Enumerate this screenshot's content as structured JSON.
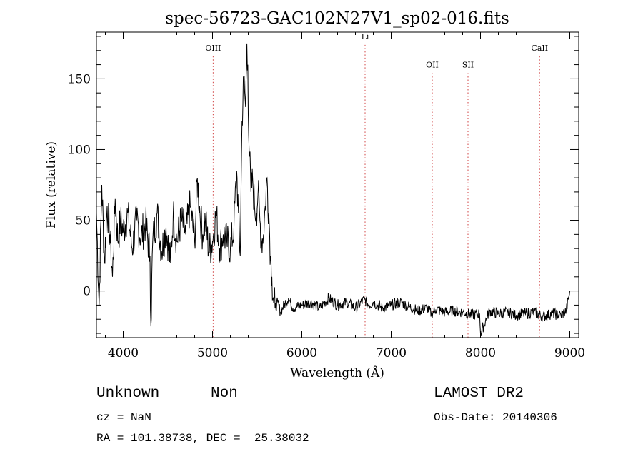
{
  "chart_data": {
    "type": "line",
    "title": "spec-56723-GAC102N27V1_sp02-016.fits",
    "xlabel": "Wavelength (Å)",
    "ylabel": "Flux (relative)",
    "xlim": [
      3700,
      9100
    ],
    "ylim": [
      -33,
      183
    ],
    "x_ticks": [
      4000,
      5000,
      6000,
      7000,
      8000,
      9000
    ],
    "y_ticks": [
      0,
      50,
      100,
      150
    ],
    "grid": false,
    "series": [
      {
        "x": [
          3700,
          3730,
          3760,
          3790,
          3820,
          3850,
          3880,
          3910,
          3940,
          3970,
          4000,
          4050,
          4100,
          4150,
          4200,
          4250,
          4300,
          4310,
          4330,
          4380,
          4430,
          4480,
          4530,
          4560,
          4600,
          4650,
          4700,
          4750,
          4800,
          4830,
          4860,
          4890,
          4920,
          4960,
          5000,
          5040,
          5080,
          5120,
          5160,
          5200,
          5240,
          5270,
          5290,
          5310,
          5330,
          5350,
          5370,
          5385,
          5395,
          5405,
          5415,
          5430,
          5450,
          5470,
          5490,
          5510,
          5530,
          5550,
          5570,
          5590,
          5610,
          5630,
          5650,
          5665,
          5680,
          5700,
          5730,
          5760,
          5800,
          5850,
          5900,
          6000,
          6100,
          6200,
          6300,
          6400,
          6500,
          6600,
          6700,
          6750,
          6800,
          6900,
          7000,
          7100,
          7200,
          7300,
          7400,
          7450,
          7500,
          7600,
          7700,
          7800,
          7900,
          7990,
          8000,
          8100,
          8200,
          8300,
          8400,
          8500,
          8600,
          8700,
          8800,
          8900,
          8960,
          9000
        ],
        "y": [
          55,
          -10,
          75,
          20,
          60,
          40,
          10,
          65,
          35,
          50,
          42,
          55,
          30,
          50,
          38,
          48,
          25,
          -25,
          35,
          55,
          28,
          45,
          20,
          55,
          35,
          50,
          40,
          60,
          35,
          80,
          55,
          40,
          50,
          28,
          35,
          55,
          30,
          40,
          35,
          30,
          45,
          85,
          55,
          25,
          120,
          150,
          130,
          175,
          160,
          110,
          95,
          70,
          78,
          60,
          55,
          70,
          50,
          35,
          40,
          60,
          80,
          55,
          25,
          10,
          -5,
          -12,
          -8,
          -15,
          -10,
          -5,
          -12,
          -10,
          -8,
          -12,
          -5,
          -10,
          -8,
          -12,
          -6,
          -10,
          -8,
          -12,
          -10,
          -8,
          -11,
          -14,
          -12,
          -16,
          -13,
          -15,
          -14,
          -15,
          -17,
          -16,
          -30,
          -14,
          -16,
          -15,
          -17,
          -16,
          -15,
          -18,
          -16,
          -17,
          -14,
          0
        ]
      }
    ],
    "annotations": [
      {
        "label": "OIII",
        "x": 5007,
        "y": 170
      },
      {
        "label": "Li",
        "x": 6708,
        "y": 178
      },
      {
        "label": "OII",
        "x": 7460,
        "y": 158
      },
      {
        "label": "SII",
        "x": 7860,
        "y": 158
      },
      {
        "label": "CaII",
        "x": 8662,
        "y": 170
      }
    ]
  },
  "info": {
    "class": "Unknown",
    "subclass": "Non",
    "survey": "LAMOST DR2",
    "cz": "cz = NaN",
    "obs_date": "Obs-Date: 20140306",
    "coords": "RA = 101.38738, DEC =  25.38032"
  }
}
